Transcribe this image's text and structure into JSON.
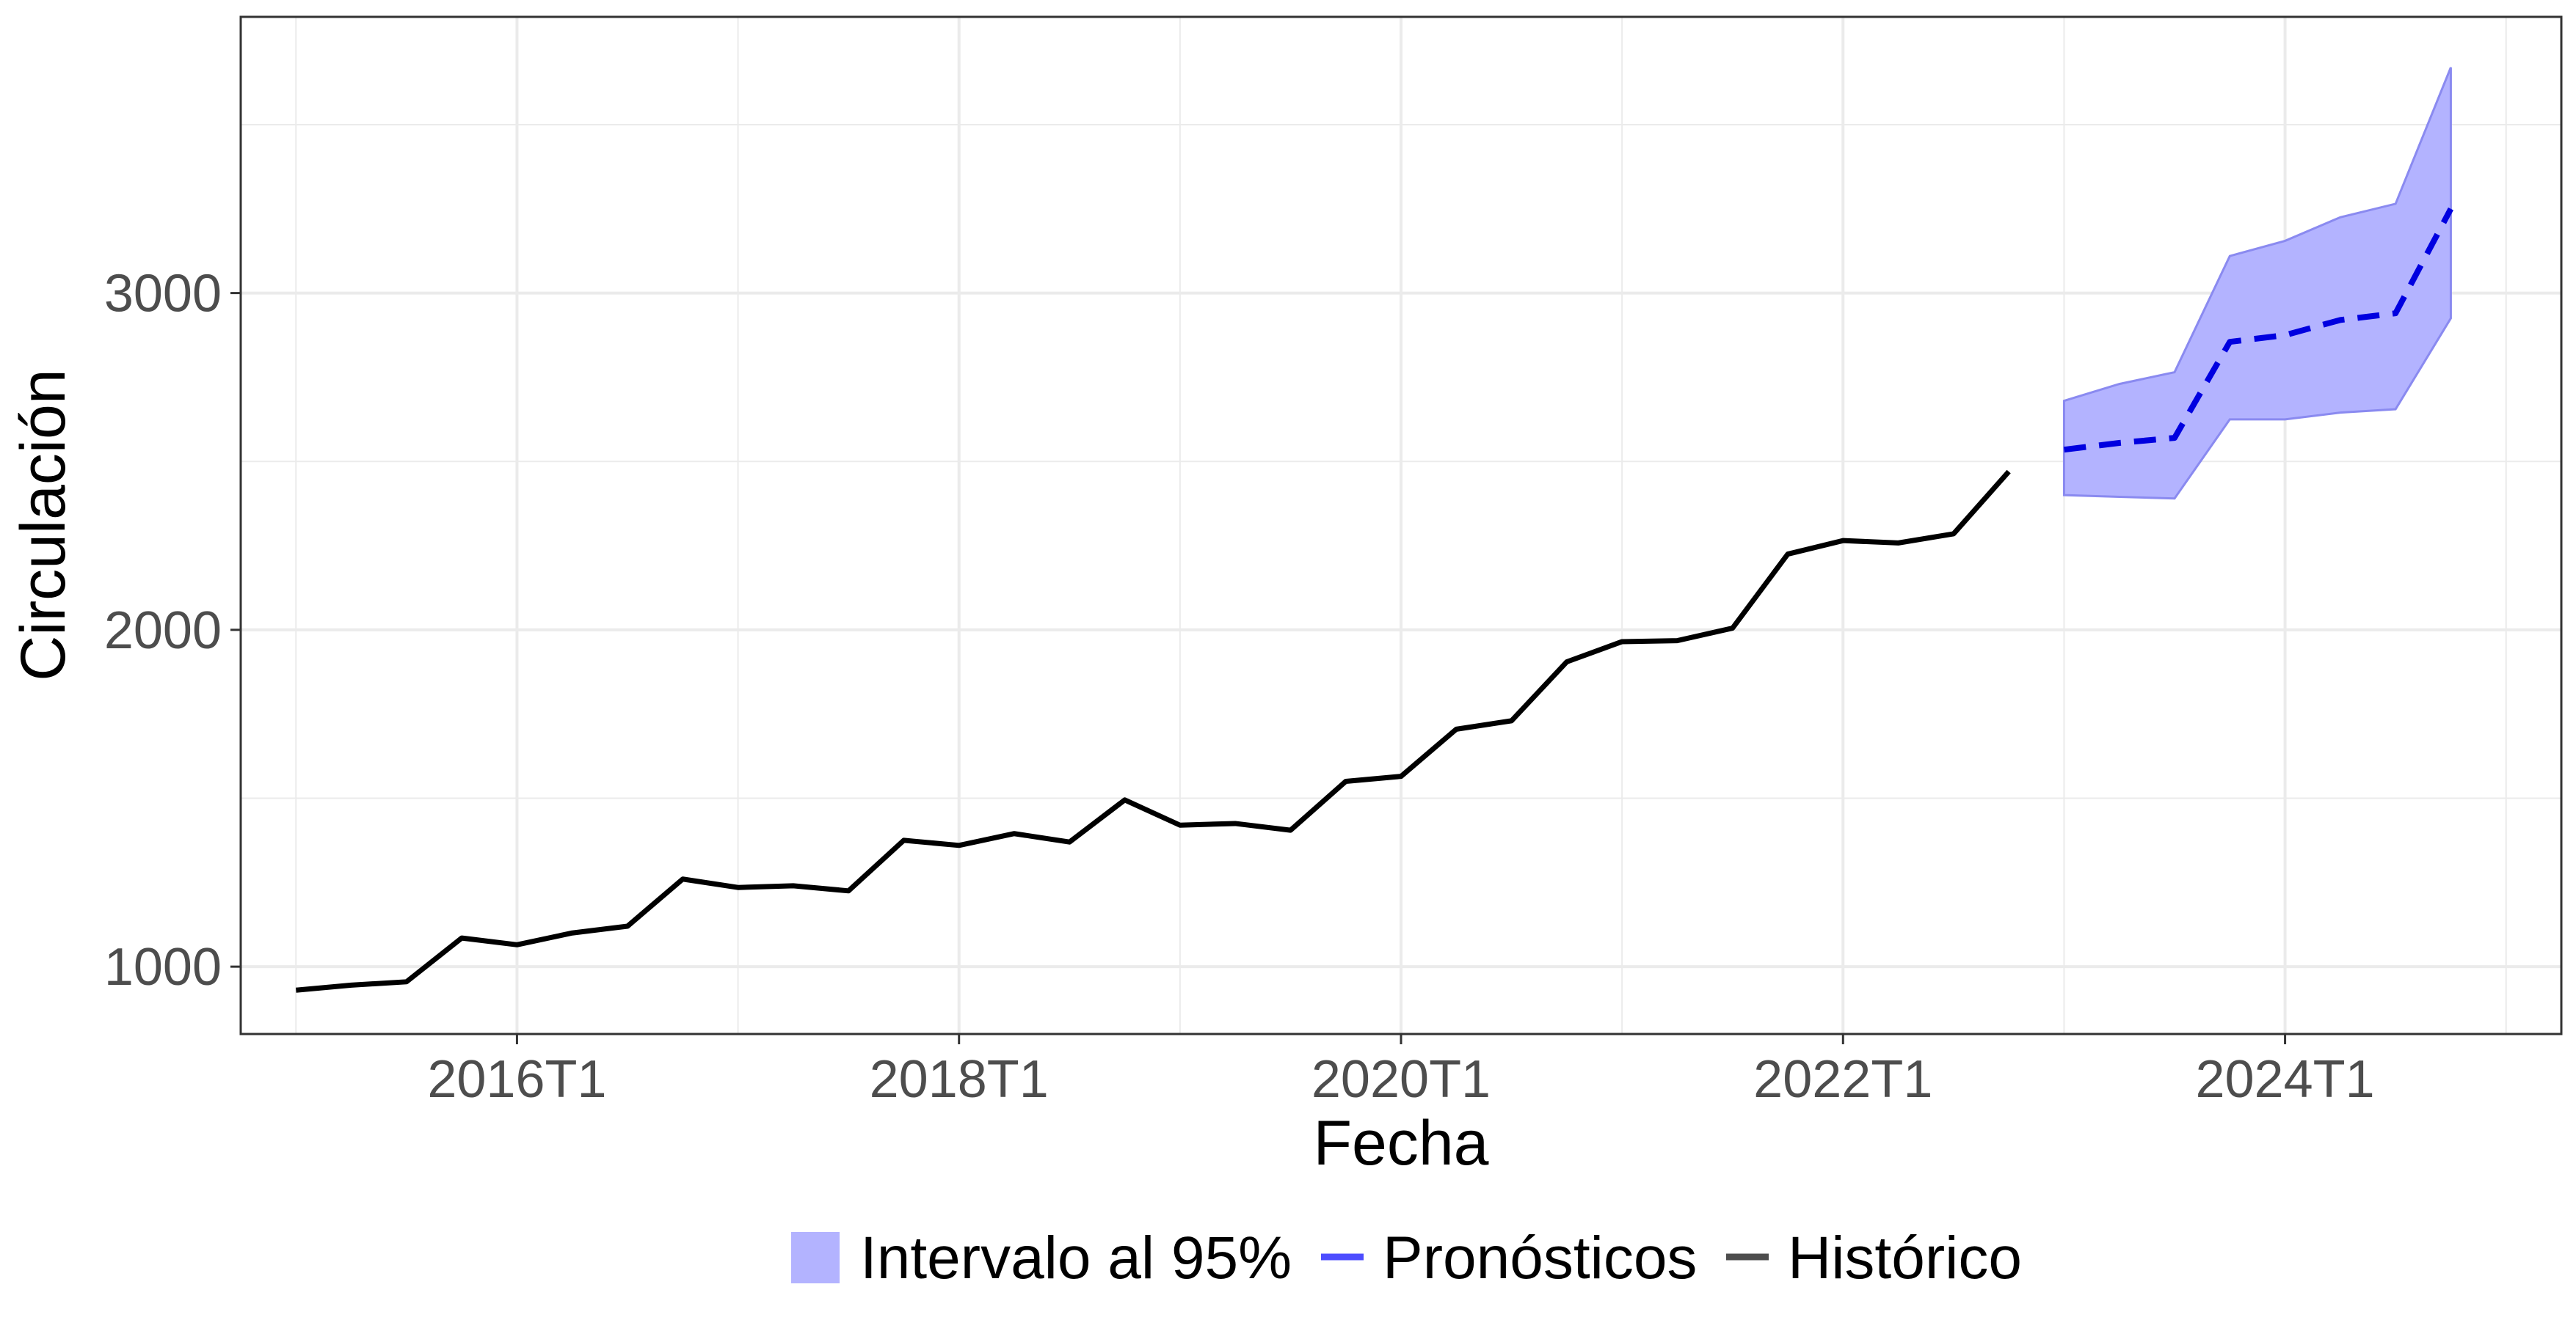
{
  "chart_data": {
    "type": "line",
    "xlabel": "Fecha",
    "ylabel": "Circulación",
    "xlim": [
      2014.75,
      2025.25
    ],
    "ylim": [
      800,
      3820
    ],
    "x_ticks": [
      {
        "value": 2016,
        "label": "2016T1"
      },
      {
        "value": 2018,
        "label": "2018T1"
      },
      {
        "value": 2020,
        "label": "2020T1"
      },
      {
        "value": 2022,
        "label": "2022T1"
      },
      {
        "value": 2024,
        "label": "2024T1"
      }
    ],
    "y_ticks": [
      {
        "value": 1000,
        "label": "1000"
      },
      {
        "value": 2000,
        "label": "2000"
      },
      {
        "value": 3000,
        "label": "3000"
      }
    ],
    "grid": true,
    "legend_position": "bottom",
    "colors": {
      "historico": "#000000",
      "pronostico": "#0000e0",
      "intervalo": "#b3b3ff",
      "intervalo_edge": "#8a8af0",
      "grid": "#ebebeb",
      "panel_border": "#333333"
    },
    "legend": [
      {
        "key": "intervalo",
        "label": "Intervalo al 95%"
      },
      {
        "key": "pronostico",
        "label": "Pronósticos"
      },
      {
        "key": "historico",
        "label": "Histórico"
      }
    ],
    "series": [
      {
        "name": "Histórico",
        "x": [
          "2015T1",
          "2015T2",
          "2015T3",
          "2015T4",
          "2016T1",
          "2016T2",
          "2016T3",
          "2016T4",
          "2017T1",
          "2017T2",
          "2017T3",
          "2017T4",
          "2018T1",
          "2018T2",
          "2018T3",
          "2018T4",
          "2019T1",
          "2019T2",
          "2019T3",
          "2019T4",
          "2020T1",
          "2020T2",
          "2020T3",
          "2020T4",
          "2021T1",
          "2021T2",
          "2021T3",
          "2021T4",
          "2022T1",
          "2022T2",
          "2022T3",
          "2022T4"
        ],
        "values": [
          930,
          945,
          955,
          1085,
          1065,
          1100,
          1120,
          1260,
          1235,
          1240,
          1225,
          1375,
          1360,
          1395,
          1370,
          1495,
          1420,
          1425,
          1405,
          1550,
          1565,
          1705,
          1730,
          1905,
          1965,
          1968,
          2005,
          2225,
          2265,
          2258,
          2285,
          2470
        ]
      },
      {
        "name": "Pronósticos",
        "x": [
          "2023T1",
          "2023T2",
          "2023T3",
          "2023T4",
          "2024T1",
          "2024T2",
          "2024T3",
          "2024T4"
        ],
        "values": [
          2535,
          2555,
          2570,
          2855,
          2875,
          2920,
          2940,
          3250
        ],
        "lower": [
          2400,
          2395,
          2390,
          2625,
          2625,
          2645,
          2655,
          2925
        ],
        "upper": [
          2680,
          2730,
          2765,
          3110,
          3155,
          3225,
          3265,
          3670
        ]
      }
    ]
  }
}
